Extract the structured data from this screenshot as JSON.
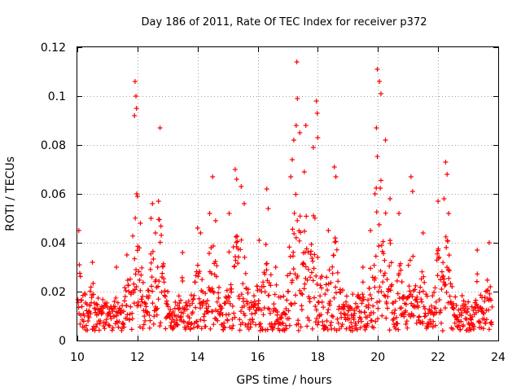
{
  "chart_data": {
    "type": "scatter",
    "title": "Day 186 of 2011, Rate Of TEC Index for receiver p372",
    "xlabel": "GPS time / hours",
    "ylabel": "ROTI / TECUs",
    "xlim": [
      10,
      24
    ],
    "ylim": [
      0,
      0.12
    ],
    "x_ticks": [
      "10",
      "12",
      "14",
      "16",
      "18",
      "20",
      "22",
      "24"
    ],
    "y_ticks": [
      "0",
      "0.02",
      "0.04",
      "0.06",
      "0.08",
      "0.1",
      "0.12"
    ],
    "x_tick_values": [
      10,
      12,
      14,
      16,
      18,
      20,
      22,
      24
    ],
    "y_tick_values": [
      0,
      0.02,
      0.04,
      0.06,
      0.08,
      0.1,
      0.12
    ],
    "grid": true,
    "marker": "+",
    "series": [
      {
        "name": "ROTI",
        "color": "#ff0000",
        "base_level": 0.011,
        "notable_points": [
          {
            "x": 10.05,
            "y": 0.045
          },
          {
            "x": 10.5,
            "y": 0.032
          },
          {
            "x": 11.3,
            "y": 0.03
          },
          {
            "x": 11.65,
            "y": 0.035
          },
          {
            "x": 11.9,
            "y": 0.092
          },
          {
            "x": 11.92,
            "y": 0.106
          },
          {
            "x": 11.95,
            "y": 0.1
          },
          {
            "x": 11.97,
            "y": 0.095
          },
          {
            "x": 12.0,
            "y": 0.059
          },
          {
            "x": 12.1,
            "y": 0.048
          },
          {
            "x": 12.45,
            "y": 0.05
          },
          {
            "x": 12.5,
            "y": 0.056
          },
          {
            "x": 12.6,
            "y": 0.044
          },
          {
            "x": 12.7,
            "y": 0.057
          },
          {
            "x": 12.75,
            "y": 0.087
          },
          {
            "x": 13.5,
            "y": 0.036
          },
          {
            "x": 14.0,
            "y": 0.046
          },
          {
            "x": 14.1,
            "y": 0.044
          },
          {
            "x": 14.4,
            "y": 0.052
          },
          {
            "x": 14.5,
            "y": 0.067
          },
          {
            "x": 14.6,
            "y": 0.049
          },
          {
            "x": 15.05,
            "y": 0.052
          },
          {
            "x": 15.25,
            "y": 0.07
          },
          {
            "x": 15.3,
            "y": 0.066
          },
          {
            "x": 15.45,
            "y": 0.063
          },
          {
            "x": 15.55,
            "y": 0.056
          },
          {
            "x": 16.05,
            "y": 0.041
          },
          {
            "x": 16.3,
            "y": 0.062
          },
          {
            "x": 16.35,
            "y": 0.054
          },
          {
            "x": 16.6,
            "y": 0.03
          },
          {
            "x": 17.1,
            "y": 0.067
          },
          {
            "x": 17.15,
            "y": 0.074
          },
          {
            "x": 17.2,
            "y": 0.082
          },
          {
            "x": 17.28,
            "y": 0.088
          },
          {
            "x": 17.3,
            "y": 0.114
          },
          {
            "x": 17.32,
            "y": 0.099
          },
          {
            "x": 17.4,
            "y": 0.085
          },
          {
            "x": 17.55,
            "y": 0.069
          },
          {
            "x": 17.6,
            "y": 0.088
          },
          {
            "x": 17.85,
            "y": 0.079
          },
          {
            "x": 17.95,
            "y": 0.098
          },
          {
            "x": 17.98,
            "y": 0.093
          },
          {
            "x": 18.0,
            "y": 0.083
          },
          {
            "x": 18.35,
            "y": 0.045
          },
          {
            "x": 18.55,
            "y": 0.071
          },
          {
            "x": 18.6,
            "y": 0.067
          },
          {
            "x": 19.5,
            "y": 0.03
          },
          {
            "x": 19.75,
            "y": 0.045
          },
          {
            "x": 19.9,
            "y": 0.06
          },
          {
            "x": 19.95,
            "y": 0.087
          },
          {
            "x": 19.98,
            "y": 0.111
          },
          {
            "x": 20.05,
            "y": 0.106
          },
          {
            "x": 20.1,
            "y": 0.101
          },
          {
            "x": 20.25,
            "y": 0.082
          },
          {
            "x": 20.4,
            "y": 0.058
          },
          {
            "x": 20.7,
            "y": 0.052
          },
          {
            "x": 21.1,
            "y": 0.067
          },
          {
            "x": 21.15,
            "y": 0.061
          },
          {
            "x": 21.5,
            "y": 0.044
          },
          {
            "x": 22.0,
            "y": 0.057
          },
          {
            "x": 22.2,
            "y": 0.058
          },
          {
            "x": 22.25,
            "y": 0.073
          },
          {
            "x": 22.3,
            "y": 0.068
          },
          {
            "x": 22.35,
            "y": 0.052
          },
          {
            "x": 23.3,
            "y": 0.037
          },
          {
            "x": 23.7,
            "y": 0.04
          }
        ]
      }
    ]
  }
}
